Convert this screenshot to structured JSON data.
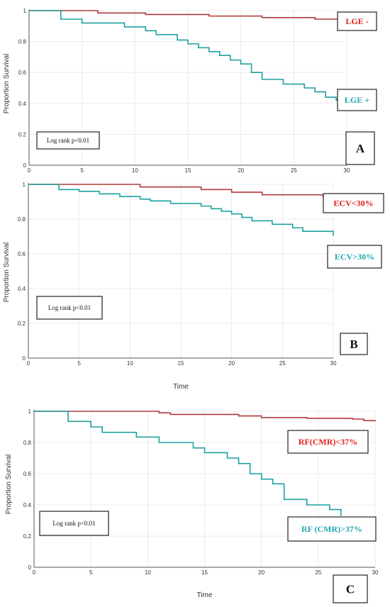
{
  "colors": {
    "red": "#b03a3a",
    "teal": "#1fa0a0",
    "red_text": "#e02020",
    "teal_text": "#20a8b0"
  },
  "chart_data": [
    {
      "type": "line",
      "step": true,
      "panel": "A",
      "xlabel": "",
      "ylabel": "Proportion Survival",
      "xlim": [
        0,
        30
      ],
      "ylim": [
        0,
        1
      ],
      "xticks": [
        "0",
        "5",
        "10",
        "15",
        "20",
        "25",
        "30"
      ],
      "yticks": [
        "0",
        "0.2",
        "0.4",
        "0.6",
        "0.8",
        "1"
      ],
      "annotation": "Log rank p<0.01",
      "series": [
        {
          "name": "LGE -",
          "color": "red",
          "x": [
            0,
            6.5,
            11,
            17,
            22,
            27,
            30
          ],
          "y": [
            1.0,
            0.985,
            0.975,
            0.965,
            0.955,
            0.945,
            0.94
          ]
        },
        {
          "name": "LGE +",
          "color": "teal",
          "x": [
            0,
            3,
            5,
            9,
            11,
            12,
            14,
            15,
            16,
            17,
            18,
            19,
            20,
            21,
            22,
            24,
            26,
            27,
            28,
            29,
            30
          ],
          "y": [
            1.0,
            0.945,
            0.92,
            0.895,
            0.87,
            0.845,
            0.81,
            0.785,
            0.76,
            0.735,
            0.71,
            0.68,
            0.655,
            0.6,
            0.555,
            0.525,
            0.5,
            0.475,
            0.44,
            0.42,
            0.41
          ]
        }
      ]
    },
    {
      "type": "line",
      "step": true,
      "panel": "B",
      "xlabel": "Time",
      "ylabel": "Proportion Survival",
      "xlim": [
        0,
        30
      ],
      "ylim": [
        0,
        1
      ],
      "xticks": [
        "0",
        "5",
        "10",
        "15",
        "20",
        "25",
        "30"
      ],
      "yticks": [
        "0",
        "0.2",
        "0.4",
        "0.6",
        "0.8",
        "1"
      ],
      "annotation": "Log rank p<0.01",
      "series": [
        {
          "name": "ECV<30%",
          "color": "red",
          "x": [
            0,
            11,
            17,
            20,
            23,
            29,
            30
          ],
          "y": [
            1.0,
            0.985,
            0.97,
            0.955,
            0.94,
            0.93,
            0.925
          ]
        },
        {
          "name": "ECV>30%",
          "color": "teal",
          "x": [
            0,
            3,
            5,
            7,
            9,
            11,
            12,
            14,
            17,
            18,
            19,
            20,
            21,
            22,
            24,
            26,
            27,
            30
          ],
          "y": [
            1.0,
            0.97,
            0.96,
            0.945,
            0.93,
            0.915,
            0.905,
            0.89,
            0.875,
            0.86,
            0.845,
            0.83,
            0.81,
            0.79,
            0.77,
            0.75,
            0.73,
            0.705
          ]
        }
      ]
    },
    {
      "type": "line",
      "step": true,
      "panel": "C",
      "xlabel": "Time",
      "ylabel": "Proportion Survival",
      "xlim": [
        0,
        30
      ],
      "ylim": [
        0,
        1
      ],
      "xticks": [
        "0",
        "5",
        "10",
        "15",
        "20",
        "25",
        "30"
      ],
      "yticks": [
        "0",
        "0.2",
        "0.4",
        "0.6",
        "0.8",
        "1"
      ],
      "annotation": "Log rank p<0.01",
      "series": [
        {
          "name": "RF(CMR)<37%",
          "color": "red",
          "x": [
            0,
            11,
            12,
            18,
            20,
            24,
            28,
            29,
            30
          ],
          "y": [
            1.0,
            0.99,
            0.98,
            0.97,
            0.96,
            0.955,
            0.95,
            0.94,
            0.935
          ]
        },
        {
          "name": "RF (CMR)>37%",
          "color": "teal",
          "x": [
            0,
            3,
            5,
            6,
            9,
            11,
            14,
            15,
            17,
            18,
            19,
            20,
            21,
            22,
            24,
            26,
            27
          ],
          "y": [
            1.0,
            0.935,
            0.9,
            0.865,
            0.835,
            0.8,
            0.765,
            0.735,
            0.7,
            0.665,
            0.6,
            0.565,
            0.535,
            0.435,
            0.4,
            0.37,
            0.33
          ]
        }
      ]
    }
  ],
  "panels": [
    {
      "letter": "A"
    },
    {
      "letter": "B"
    },
    {
      "letter": "C"
    }
  ]
}
